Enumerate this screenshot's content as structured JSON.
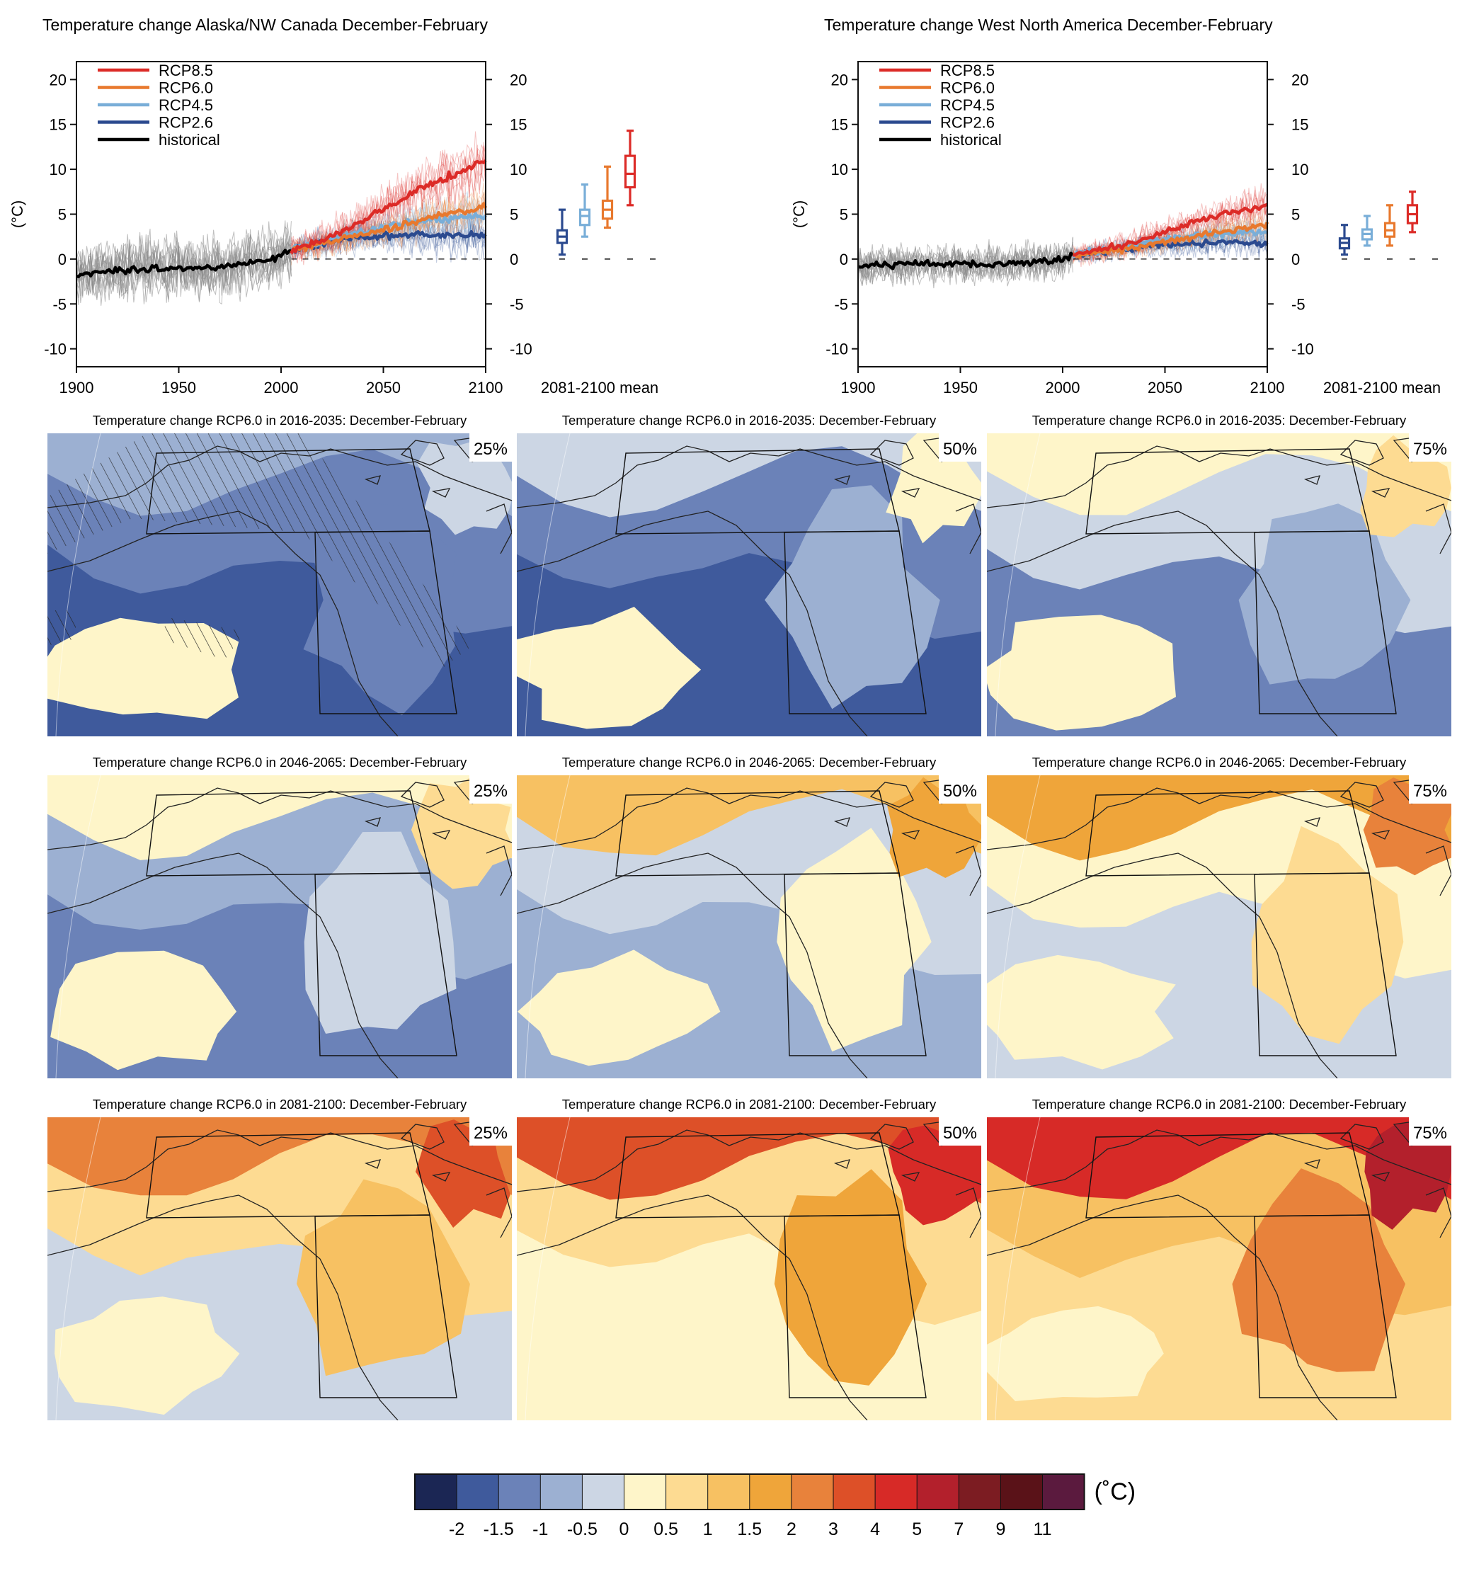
{
  "timeseries": [
    {
      "title": "Temperature change Alaska/NW Canada December-February",
      "ylabel": "(°C)",
      "xlim": [
        1900,
        2100
      ],
      "ylim": [
        -12,
        22
      ],
      "xticks": [
        "1900",
        "1950",
        "2000",
        "2050",
        "2100"
      ],
      "yticks": [
        "20",
        "15",
        "10",
        "5",
        "0",
        "-5",
        "-10"
      ],
      "boxplot_label": "2081-2100 mean",
      "legend": [
        "RCP8.5",
        "RCP6.0",
        "RCP4.5",
        "RCP2.6",
        "historical"
      ],
      "series": [
        {
          "name": "historical",
          "color": "#000000",
          "x": [
            1900,
            1920,
            1940,
            1960,
            1980,
            2000,
            2005
          ],
          "y": [
            -1.8,
            -1.2,
            -1.0,
            -1.1,
            -0.6,
            0.3,
            1.0
          ],
          "spread": 4.5
        },
        {
          "name": "RCP2.6",
          "color": "#2b4a8f",
          "x": [
            2005,
            2030,
            2050,
            2070,
            2100
          ],
          "y": [
            1.0,
            2.2,
            2.6,
            2.7,
            2.6
          ],
          "spread": 3.0
        },
        {
          "name": "RCP4.5",
          "color": "#79aed8",
          "x": [
            2005,
            2030,
            2050,
            2070,
            2100
          ],
          "y": [
            1.0,
            2.5,
            3.6,
            4.3,
            4.8
          ],
          "spread": 3.0
        },
        {
          "name": "RCP6.0",
          "color": "#e8792e",
          "x": [
            2005,
            2030,
            2050,
            2070,
            2100
          ],
          "y": [
            1.0,
            2.2,
            3.2,
            4.5,
            5.8
          ],
          "spread": 3.0
        },
        {
          "name": "RCP8.5",
          "color": "#dc2b27",
          "x": [
            2005,
            2030,
            2050,
            2070,
            2100
          ],
          "y": [
            1.0,
            3.0,
            5.5,
            8.0,
            11.0
          ],
          "spread": 4.0
        }
      ],
      "boxplots": [
        {
          "name": "RCP2.6",
          "color": "#2b4a8f",
          "min": 0.5,
          "q1": 1.8,
          "median": 2.5,
          "q3": 3.2,
          "max": 5.5
        },
        {
          "name": "RCP4.5",
          "color": "#79aed8",
          "min": 2.5,
          "q1": 3.8,
          "median": 4.8,
          "q3": 5.5,
          "max": 8.3
        },
        {
          "name": "RCP6.0",
          "color": "#e8792e",
          "min": 3.5,
          "q1": 4.5,
          "median": 5.5,
          "q3": 6.5,
          "max": 10.3
        },
        {
          "name": "RCP8.5",
          "color": "#dc2b27",
          "min": 6.0,
          "q1": 8.0,
          "median": 9.5,
          "q3": 11.5,
          "max": 14.3
        }
      ]
    },
    {
      "title": "Temperature change West North America December-February",
      "ylabel": "(°C)",
      "xlim": [
        1900,
        2100
      ],
      "ylim": [
        -12,
        22
      ],
      "xticks": [
        "1900",
        "1950",
        "2000",
        "2050",
        "2100"
      ],
      "yticks": [
        "20",
        "15",
        "10",
        "5",
        "0",
        "-5",
        "-10"
      ],
      "boxplot_label": "2081-2100 mean",
      "legend": [
        "RCP8.5",
        "RCP6.0",
        "RCP4.5",
        "RCP2.6",
        "historical"
      ],
      "series": [
        {
          "name": "historical",
          "color": "#000000",
          "x": [
            1900,
            1920,
            1940,
            1960,
            1980,
            2000,
            2005
          ],
          "y": [
            -0.8,
            -0.6,
            -0.5,
            -0.6,
            -0.4,
            -0.1,
            0.4
          ],
          "spread": 2.8
        },
        {
          "name": "RCP2.6",
          "color": "#2b4a8f",
          "x": [
            2005,
            2030,
            2050,
            2070,
            2100
          ],
          "y": [
            0.4,
            1.2,
            1.6,
            1.8,
            1.8
          ],
          "spread": 2.0
        },
        {
          "name": "RCP4.5",
          "color": "#79aed8",
          "x": [
            2005,
            2030,
            2050,
            2070,
            2100
          ],
          "y": [
            0.4,
            1.3,
            2.2,
            2.7,
            3.0
          ],
          "spread": 2.0
        },
        {
          "name": "RCP6.0",
          "color": "#e8792e",
          "x": [
            2005,
            2030,
            2050,
            2070,
            2100
          ],
          "y": [
            0.4,
            1.1,
            1.9,
            2.8,
            3.8
          ],
          "spread": 2.0
        },
        {
          "name": "RCP8.5",
          "color": "#dc2b27",
          "x": [
            2005,
            2030,
            2050,
            2070,
            2100
          ],
          "y": [
            0.4,
            1.6,
            3.0,
            4.5,
            6.0
          ],
          "spread": 2.5
        }
      ],
      "boxplots": [
        {
          "name": "RCP2.6",
          "color": "#2b4a8f",
          "min": 0.5,
          "q1": 1.2,
          "median": 1.8,
          "q3": 2.3,
          "max": 3.8
        },
        {
          "name": "RCP4.5",
          "color": "#79aed8",
          "min": 1.5,
          "q1": 2.2,
          "median": 2.8,
          "q3": 3.3,
          "max": 4.8
        },
        {
          "name": "RCP6.0",
          "color": "#e8792e",
          "min": 1.5,
          "q1": 2.5,
          "median": 3.2,
          "q3": 4.0,
          "max": 6.0
        },
        {
          "name": "RCP8.5",
          "color": "#dc2b27",
          "min": 3.0,
          "q1": 4.0,
          "median": 5.0,
          "q3": 6.0,
          "max": 7.5
        }
      ]
    }
  ],
  "maps": [
    {
      "title": "Temperature change RCP6.0 in 2016-2035: December-February",
      "pct": "25%",
      "levels": [
        1,
        2,
        3,
        2
      ]
    },
    {
      "title": "Temperature change RCP6.0 in 2016-2035: December-February",
      "pct": "50%",
      "levels": [
        1,
        2,
        4,
        3
      ]
    },
    {
      "title": "Temperature change RCP6.0 in 2016-2035: December-February",
      "pct": "75%",
      "levels": [
        2,
        4,
        5,
        3
      ]
    },
    {
      "title": "Temperature change RCP6.0 in 2046-2065: December-February",
      "pct": "25%",
      "levels": [
        2,
        3,
        5,
        4
      ]
    },
    {
      "title": "Temperature change RCP6.0 in 2046-2065: December-February",
      "pct": "50%",
      "levels": [
        3,
        4,
        7,
        5
      ]
    },
    {
      "title": "Temperature change RCP6.0 in 2046-2065: December-February",
      "pct": "75%",
      "levels": [
        4,
        5,
        8,
        6
      ]
    },
    {
      "title": "Temperature change RCP6.0 in 2081-2100: December-February",
      "pct": "25%",
      "levels": [
        4,
        6,
        9,
        7
      ]
    },
    {
      "title": "Temperature change RCP6.0 in 2081-2100: December-February",
      "pct": "50%",
      "levels": [
        5,
        6,
        10,
        8
      ]
    },
    {
      "title": "Temperature change RCP6.0 in 2081-2100: December-February",
      "pct": "75%",
      "levels": [
        6,
        7,
        11,
        9
      ]
    }
  ],
  "colorbar": {
    "unit": "(˚C)",
    "colors": [
      "#1b2654",
      "#3f5a9c",
      "#6b82b8",
      "#9cb0d2",
      "#ccd6e4",
      "#fef5c9",
      "#fddb92",
      "#f7c162",
      "#efa53a",
      "#e8823b",
      "#dd5028",
      "#d72a27",
      "#b3202c",
      "#7c1c22",
      "#5a1218",
      "#5b1a3e"
    ],
    "labels": [
      "-2",
      "-1.5",
      "-1",
      "-0.5",
      "0",
      "0.5",
      "1",
      "1.5",
      "2",
      "3",
      "4",
      "5",
      "7",
      "9",
      "11"
    ]
  },
  "chart_data": [
    {
      "type": "line",
      "title": "Temperature change Alaska/NW Canada December-February",
      "xlabel": "",
      "ylabel": "(°C)",
      "xlim": [
        1900,
        2100
      ],
      "ylim": [
        -12,
        22
      ],
      "series": [
        {
          "name": "historical",
          "x": [
            1900,
            1920,
            1940,
            1960,
            1980,
            2000,
            2005
          ],
          "y": [
            -1.8,
            -1.2,
            -1.0,
            -1.1,
            -0.6,
            0.3,
            1.0
          ]
        },
        {
          "name": "RCP2.6",
          "x": [
            2005,
            2030,
            2050,
            2070,
            2100
          ],
          "y": [
            1.0,
            2.2,
            2.6,
            2.7,
            2.6
          ]
        },
        {
          "name": "RCP4.5",
          "x": [
            2005,
            2030,
            2050,
            2070,
            2100
          ],
          "y": [
            1.0,
            2.5,
            3.6,
            4.3,
            4.8
          ]
        },
        {
          "name": "RCP6.0",
          "x": [
            2005,
            2030,
            2050,
            2070,
            2100
          ],
          "y": [
            1.0,
            2.2,
            3.2,
            4.5,
            5.8
          ]
        },
        {
          "name": "RCP8.5",
          "x": [
            2005,
            2030,
            2050,
            2070,
            2100
          ],
          "y": [
            1.0,
            3.0,
            5.5,
            8.0,
            11.0
          ]
        }
      ],
      "boxplots_2081_2100_mean": {
        "RCP2.6": [
          0.5,
          1.8,
          2.5,
          3.2,
          5.5
        ],
        "RCP4.5": [
          2.5,
          3.8,
          4.8,
          5.5,
          8.3
        ],
        "RCP6.0": [
          3.5,
          4.5,
          5.5,
          6.5,
          10.3
        ],
        "RCP8.5": [
          6.0,
          8.0,
          9.5,
          11.5,
          14.3
        ]
      }
    },
    {
      "type": "line",
      "title": "Temperature change West North America December-February",
      "xlabel": "",
      "ylabel": "(°C)",
      "xlim": [
        1900,
        2100
      ],
      "ylim": [
        -12,
        22
      ],
      "series": [
        {
          "name": "historical",
          "x": [
            1900,
            1920,
            1940,
            1960,
            1980,
            2000,
            2005
          ],
          "y": [
            -0.8,
            -0.6,
            -0.5,
            -0.6,
            -0.4,
            -0.1,
            0.4
          ]
        },
        {
          "name": "RCP2.6",
          "x": [
            2005,
            2030,
            2050,
            2070,
            2100
          ],
          "y": [
            0.4,
            1.2,
            1.6,
            1.8,
            1.8
          ]
        },
        {
          "name": "RCP4.5",
          "x": [
            2005,
            2030,
            2050,
            2070,
            2100
          ],
          "y": [
            0.4,
            1.3,
            2.2,
            2.7,
            3.0
          ]
        },
        {
          "name": "RCP6.0",
          "x": [
            2005,
            2030,
            2050,
            2070,
            2100
          ],
          "y": [
            0.4,
            1.1,
            1.9,
            2.8,
            3.8
          ]
        },
        {
          "name": "RCP8.5",
          "x": [
            2005,
            2030,
            2050,
            2070,
            2100
          ],
          "y": [
            0.4,
            1.6,
            3.0,
            4.5,
            6.0
          ]
        }
      ],
      "boxplots_2081_2100_mean": {
        "RCP2.6": [
          0.5,
          1.2,
          1.8,
          2.3,
          3.8
        ],
        "RCP4.5": [
          1.5,
          2.2,
          2.8,
          3.3,
          4.8
        ],
        "RCP6.0": [
          1.5,
          2.5,
          3.2,
          4.0,
          6.0
        ],
        "RCP8.5": [
          3.0,
          4.0,
          5.0,
          6.0,
          7.5
        ]
      }
    },
    {
      "type": "heatmap",
      "title": "Temperature change RCP6.0 December-February (maps, 25% / 50% / 75%)",
      "periods": [
        "2016-2035",
        "2046-2065",
        "2081-2100"
      ],
      "percentiles": [
        "25%",
        "50%",
        "75%"
      ],
      "colorbar_unit": "(˚C)",
      "colorbar_levels": [
        -2,
        -1.5,
        -1,
        -0.5,
        0,
        0.5,
        1,
        1.5,
        2,
        3,
        4,
        5,
        7,
        9,
        11
      ]
    }
  ]
}
